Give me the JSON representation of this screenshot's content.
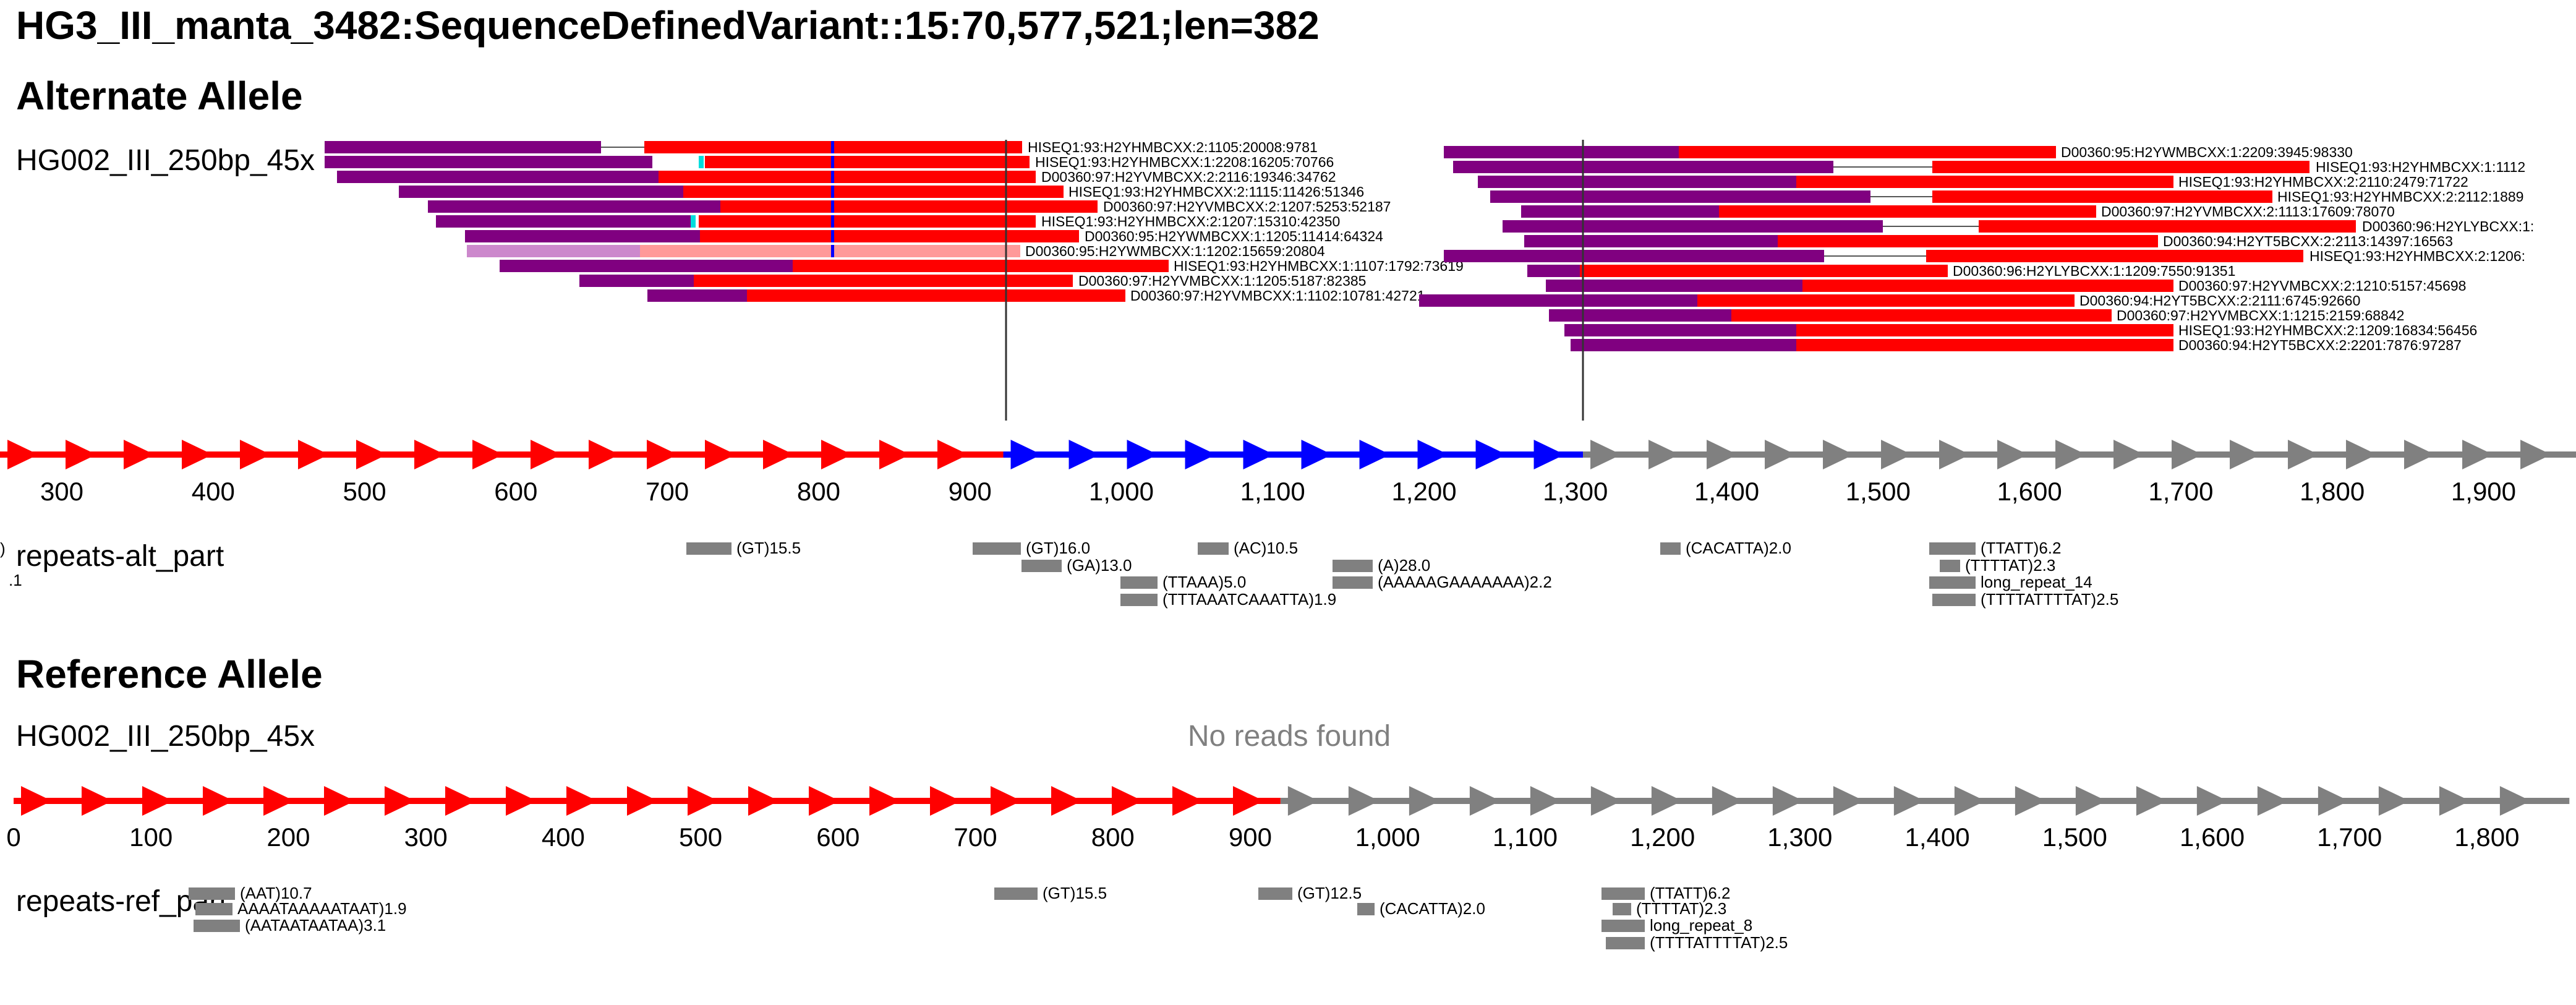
{
  "title": "HG3_III_manta_3482:SequenceDefinedVariant::15:70,577,521;len=382",
  "alt": {
    "heading": "Alternate Allele",
    "sample_label": "HG002_III_250bp_45x",
    "axis_ticks": [
      "300",
      "400",
      "500",
      "600",
      "700",
      "800",
      "900",
      "1,000",
      "1,100",
      "1,200",
      "1,300",
      "1,400",
      "1,500",
      "1,600",
      "1,700",
      "1,800",
      "1,900"
    ],
    "segments": [
      {
        "color": "#ff0000",
        "from": 0,
        "to": 922
      },
      {
        "color": "#0000ff",
        "from": 922,
        "to": 1305
      },
      {
        "color": "#808080",
        "from": 1305,
        "to": 2005
      }
    ],
    "reads_left": [
      {
        "name": "HISEQ1:93:H2YHMBCXX:2:1105:20008:9781"
      },
      {
        "name": "HISEQ1:93:H2YHMBCXX:1:2208:16205:70766"
      },
      {
        "name": "D00360:97:H2YVMBCXX:2:2116:19346:34762"
      },
      {
        "name": "HISEQ1:93:H2YHMBCXX:2:1115:11426:51346"
      },
      {
        "name": "D00360:97:H2YVMBCXX:2:1207:5253:52187"
      },
      {
        "name": "HISEQ1:93:H2YHMBCXX:2:1207:15310:42350"
      },
      {
        "name": "D00360:95:H2YWMBCXX:1:1205:11414:64324"
      },
      {
        "name": "D00360:95:H2YWMBCXX:1:1202:15659:20804"
      },
      {
        "name": "HISEQ1:93:H2YHMBCXX:1:1107:1792:73619"
      },
      {
        "name": "D00360:97:H2YVMBCXX:1:1205:5187:82385"
      },
      {
        "name": "D00360:97:H2YVMBCXX:1:1102:10781:42721"
      }
    ],
    "reads_right": [
      {
        "name": "D00360:95:H2YWMBCXX:1:2209:3945:98330"
      },
      {
        "name": "HISEQ1:93:H2YHMBCXX:1:1112"
      },
      {
        "name": "HISEQ1:93:H2YHMBCXX:2:2110:2479:71722"
      },
      {
        "name": "HISEQ1:93:H2YHMBCXX:2:2112:1889"
      },
      {
        "name": "D00360:97:H2YVMBCXX:2:1113:17609:78070"
      },
      {
        "name": "D00360:96:H2YLYBCXX:1:"
      },
      {
        "name": "D00360:94:H2YT5BCXX:2:2113:14397:16563"
      },
      {
        "name": "HISEQ1:93:H2YHMBCXX:2:1206:"
      },
      {
        "name": "D00360:96:H2YLYBCXX:1:1209:7550:91351"
      },
      {
        "name": "D00360:97:H2YVMBCXX:2:1210:5157:45698"
      },
      {
        "name": "D00360:94:H2YT5BCXX:2:2111:6745:92660"
      },
      {
        "name": "D00360:97:H2YVMBCXX:1:1215:2159:68842"
      },
      {
        "name": "HISEQ1:93:H2YHMBCXX:2:1209:16834:56456"
      },
      {
        "name": "D00360:94:H2YT5BCXX:2:2201:7876:97287"
      }
    ],
    "repeats_label": "repeats-alt_part",
    "repeats_edge_label": ")\n.1",
    "repeats": [
      {
        "label": "(GT)15.5"
      },
      {
        "label": "(GT)16.0"
      },
      {
        "label": "(GA)13.0"
      },
      {
        "label": "(TTAAA)5.0"
      },
      {
        "label": "(TTTAAATCAAATTA)1.9"
      },
      {
        "label": "(AC)10.5"
      },
      {
        "label": "(A)28.0"
      },
      {
        "label": "(AAAAAGAAAAAAA)2.2"
      },
      {
        "label": "(CACATTA)2.0"
      },
      {
        "label": "(TTATT)6.2"
      },
      {
        "label": "(TTTTAT)2.3"
      },
      {
        "label": "long_repeat_14"
      },
      {
        "label": "(TTTTATTTTAT)2.5"
      }
    ]
  },
  "ref": {
    "heading": "Reference Allele",
    "sample_label": "HG002_III_250bp_45x",
    "no_reads": "No reads found",
    "axis_ticks": [
      "0",
      "100",
      "200",
      "300",
      "400",
      "500",
      "600",
      "700",
      "800",
      "900",
      "1,000",
      "1,100",
      "1,200",
      "1,300",
      "1,400",
      "1,500",
      "1,600",
      "1,700",
      "1,800"
    ],
    "segments": [
      {
        "color": "#ff0000",
        "from": 0,
        "to": 922
      },
      {
        "color": "#808080",
        "from": 922,
        "to": 1860
      }
    ],
    "repeats_label": "repeats-ref_part",
    "repeats": [
      {
        "label": "(AAT)10.7"
      },
      {
        "label": "AAAATAAAAATAAT)1.9"
      },
      {
        "label": "(AATAATAATAA)3.1"
      },
      {
        "label": "(GT)15.5"
      },
      {
        "label": "(GT)12.5"
      },
      {
        "label": "(CACATTA)2.0"
      },
      {
        "label": "(TTATT)6.2"
      },
      {
        "label": "(TTTTAT)2.3"
      },
      {
        "label": "long_repeat_8"
      },
      {
        "label": "(TTTTATTTTAT)2.5"
      }
    ]
  },
  "colors": {
    "read_red": "#ff0000",
    "read_purple": "#800080",
    "read_light_purple": "#cc88cc",
    "read_pink": "#ff9999",
    "mismatch_blue": "#0000ff",
    "mismatch_cyan": "#00dddd",
    "repeat_gray": "#808080"
  }
}
